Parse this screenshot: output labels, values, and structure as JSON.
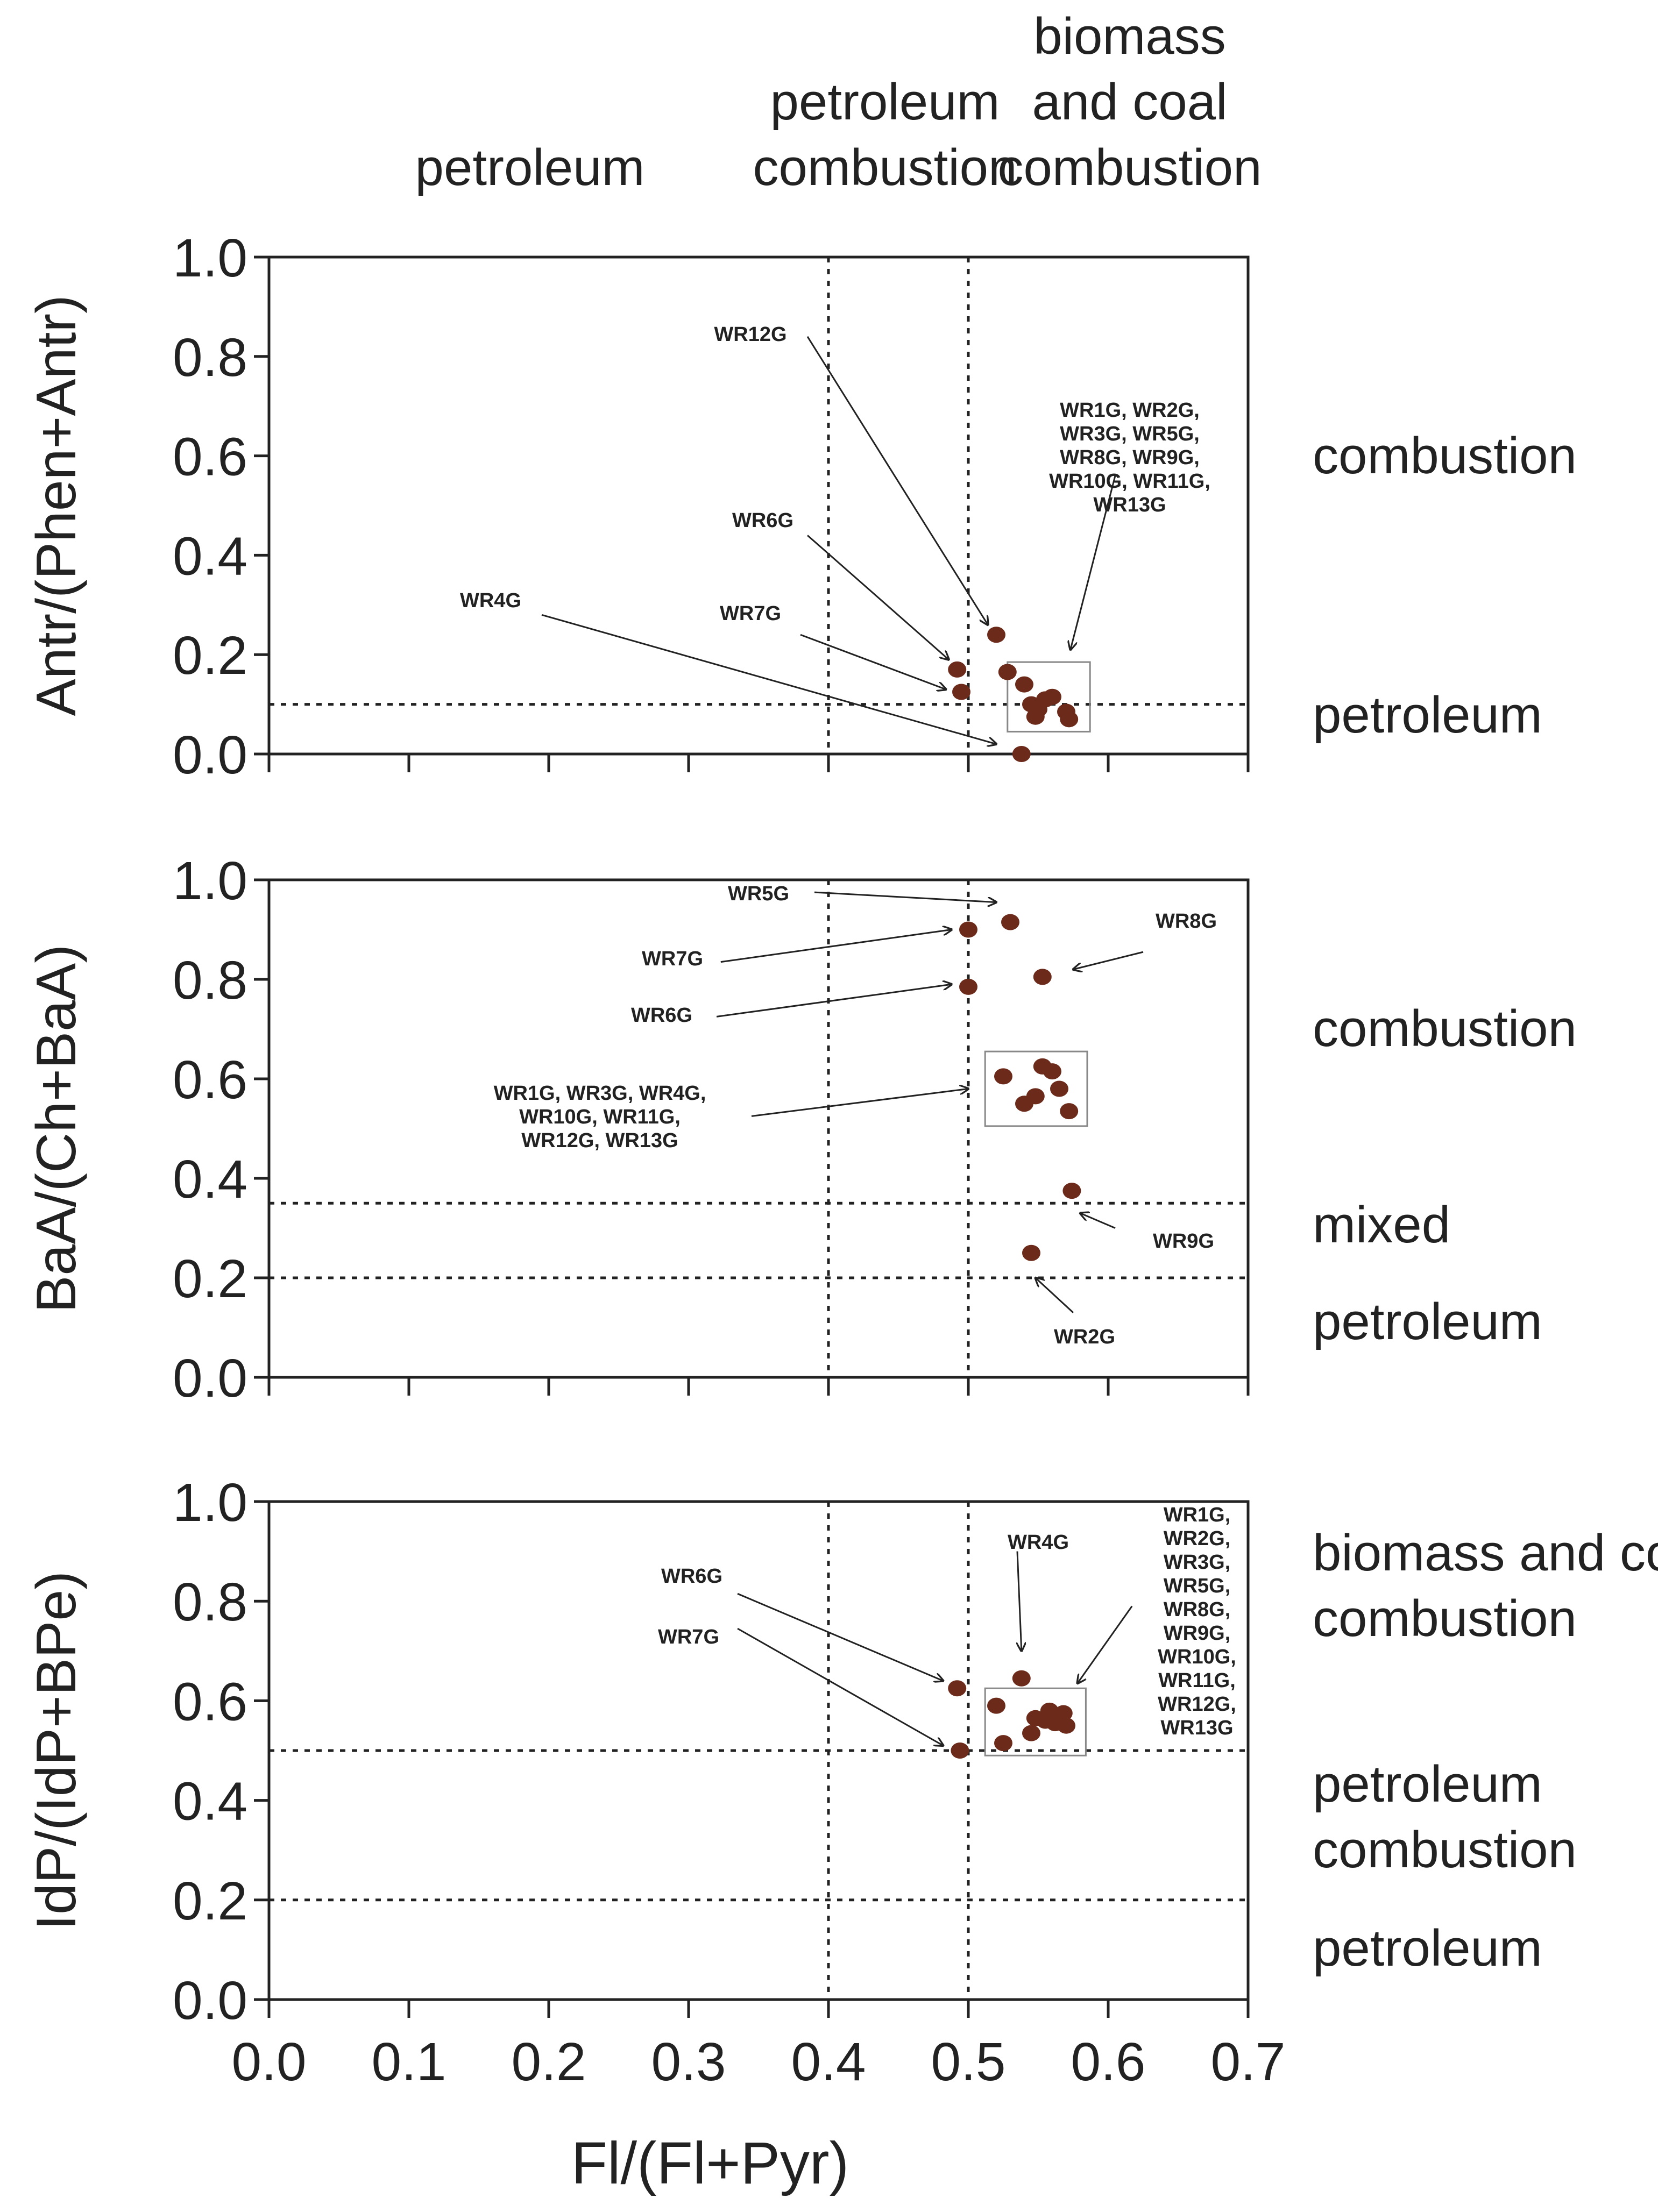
{
  "chart_data": [
    {
      "type": "scatter",
      "ylabel": "Antr/(Phen+Antr)",
      "xlim": [
        0,
        0.7
      ],
      "ylim": [
        0,
        1.0
      ],
      "yticks": [
        "0.0",
        "0.2",
        "0.4",
        "0.6",
        "0.8",
        "1.0"
      ],
      "reference_lines": {
        "x": [
          0.4,
          0.5
        ],
        "y": [
          0.1
        ]
      },
      "zones_top": [
        {
          "lines": [
            "petroleum"
          ]
        },
        {
          "lines": [
            "petroleum",
            "combustion"
          ]
        },
        {
          "lines": [
            "biomass",
            "and coal",
            "combustion"
          ]
        }
      ],
      "zones_right": [
        {
          "lines": [
            "combustion"
          ]
        },
        {
          "lines": [
            "petroleum"
          ]
        }
      ],
      "points": [
        {
          "x": 0.52,
          "y": 0.24
        },
        {
          "x": 0.492,
          "y": 0.17
        },
        {
          "x": 0.495,
          "y": 0.125
        },
        {
          "x": 0.538,
          "y": 0.0
        },
        {
          "x": 0.528,
          "y": 0.165
        },
        {
          "x": 0.54,
          "y": 0.14
        },
        {
          "x": 0.545,
          "y": 0.1
        },
        {
          "x": 0.55,
          "y": 0.09
        },
        {
          "x": 0.555,
          "y": 0.11
        },
        {
          "x": 0.56,
          "y": 0.115
        },
        {
          "x": 0.548,
          "y": 0.075
        },
        {
          "x": 0.57,
          "y": 0.085
        },
        {
          "x": 0.572,
          "y": 0.07
        }
      ],
      "groups": [
        {
          "x0": 0.528,
          "x1": 0.587,
          "y0": 0.045,
          "y1": 0.185
        }
      ],
      "annotations": [
        {
          "lines": [
            "WR12G"
          ]
        },
        {
          "lines": [
            "WR1G, WR2G,",
            "WR3G, WR5G,",
            "WR8G, WR9G,",
            "WR10G, WR11G,",
            "WR13G"
          ]
        },
        {
          "lines": [
            "WR6G"
          ]
        },
        {
          "lines": [
            "WR4G"
          ]
        },
        {
          "lines": [
            "WR7G"
          ]
        }
      ]
    },
    {
      "type": "scatter",
      "ylabel": "BaA/(Ch+BaA)",
      "xlim": [
        0,
        0.7
      ],
      "ylim": [
        0,
        1.0
      ],
      "yticks": [
        "0.0",
        "0.2",
        "0.4",
        "0.6",
        "0.8",
        "1.0"
      ],
      "reference_lines": {
        "x": [
          0.4,
          0.5
        ],
        "y": [
          0.35,
          0.2
        ]
      },
      "zones_right": [
        {
          "lines": [
            "combustion"
          ]
        },
        {
          "lines": [
            "mixed"
          ]
        },
        {
          "lines": [
            "petroleum"
          ]
        }
      ],
      "points": [
        {
          "x": 0.53,
          "y": 0.915
        },
        {
          "x": 0.5,
          "y": 0.9
        },
        {
          "x": 0.553,
          "y": 0.805
        },
        {
          "x": 0.5,
          "y": 0.785
        },
        {
          "x": 0.525,
          "y": 0.605
        },
        {
          "x": 0.553,
          "y": 0.625
        },
        {
          "x": 0.56,
          "y": 0.615
        },
        {
          "x": 0.565,
          "y": 0.58
        },
        {
          "x": 0.548,
          "y": 0.565
        },
        {
          "x": 0.54,
          "y": 0.55
        },
        {
          "x": 0.572,
          "y": 0.535
        },
        {
          "x": 0.574,
          "y": 0.375
        },
        {
          "x": 0.545,
          "y": 0.25
        }
      ],
      "groups": [
        {
          "x0": 0.512,
          "x1": 0.585,
          "y0": 0.505,
          "y1": 0.655
        }
      ],
      "annotations": [
        {
          "lines": [
            "WR5G"
          ]
        },
        {
          "lines": [
            "WR8G"
          ]
        },
        {
          "lines": [
            "WR7G"
          ]
        },
        {
          "lines": [
            "WR6G"
          ]
        },
        {
          "lines": [
            "WR1G, WR3G, WR4G,",
            "WR10G, WR11G,",
            "WR12G, WR13G"
          ]
        },
        {
          "lines": [
            "WR9G"
          ]
        },
        {
          "lines": [
            "WR2G"
          ]
        }
      ]
    },
    {
      "type": "scatter",
      "ylabel": "IdP/(IdP+BPe)",
      "xlabel": "Fl/(Fl+Pyr)",
      "xlim": [
        0,
        0.7
      ],
      "ylim": [
        0,
        1.0
      ],
      "xticks": [
        "0.0",
        "0.1",
        "0.2",
        "0.3",
        "0.4",
        "0.5",
        "0.6",
        "0.7"
      ],
      "yticks": [
        "0.0",
        "0.2",
        "0.4",
        "0.6",
        "0.8",
        "1.0"
      ],
      "reference_lines": {
        "x": [
          0.4,
          0.5
        ],
        "y": [
          0.5,
          0.2
        ]
      },
      "zones_right": [
        {
          "lines": [
            "biomass and coal",
            "combustion"
          ]
        },
        {
          "lines": [
            "petroleum",
            "combustion"
          ]
        },
        {
          "lines": [
            "petroleum"
          ]
        }
      ],
      "points": [
        {
          "x": 0.538,
          "y": 0.645
        },
        {
          "x": 0.492,
          "y": 0.625
        },
        {
          "x": 0.52,
          "y": 0.59
        },
        {
          "x": 0.558,
          "y": 0.58
        },
        {
          "x": 0.568,
          "y": 0.575
        },
        {
          "x": 0.548,
          "y": 0.565
        },
        {
          "x": 0.555,
          "y": 0.56
        },
        {
          "x": 0.562,
          "y": 0.555
        },
        {
          "x": 0.57,
          "y": 0.55
        },
        {
          "x": 0.545,
          "y": 0.535
        },
        {
          "x": 0.525,
          "y": 0.515
        },
        {
          "x": 0.494,
          "y": 0.5
        }
      ],
      "groups": [
        {
          "x0": 0.512,
          "x1": 0.584,
          "y0": 0.49,
          "y1": 0.625
        }
      ],
      "annotations": [
        {
          "lines": [
            "WR4G"
          ]
        },
        {
          "lines": [
            "WR1G,",
            "WR2G,",
            "WR3G,",
            "WR5G,",
            "WR8G,",
            "WR9G,",
            "WR10G,",
            "WR11G,",
            "WR12G,",
            "WR13G"
          ]
        },
        {
          "lines": [
            "WR6G"
          ]
        },
        {
          "lines": [
            "WR7G"
          ]
        }
      ]
    }
  ]
}
